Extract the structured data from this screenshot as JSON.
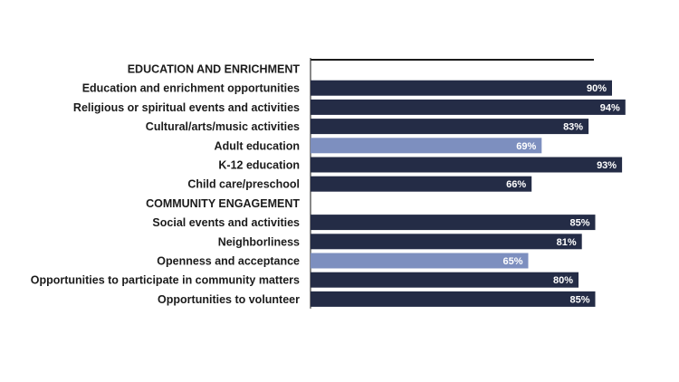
{
  "chart_data": {
    "type": "bar",
    "orientation": "horizontal",
    "title": "",
    "xlabel": "",
    "ylabel": "",
    "xlim": [
      0,
      100
    ],
    "grid": false,
    "legend": "none",
    "colors": {
      "dark": "#242c46",
      "light": "#7d8fbf",
      "axis": "#3a3a3a"
    },
    "groups": [
      {
        "header": "EDUCATION AND ENRICHMENT",
        "items": [
          {
            "label": "Education and enrichment opportunities",
            "value": 90,
            "value_label": "90%",
            "highlight": false
          },
          {
            "label": "Religious or spiritual events and activities",
            "value": 94,
            "value_label": "94%",
            "highlight": false
          },
          {
            "label": "Cultural/arts/music activities",
            "value": 83,
            "value_label": "83%",
            "highlight": false
          },
          {
            "label": "Adult education",
            "value": 69,
            "value_label": "69%",
            "highlight": true
          },
          {
            "label": "K-12 education",
            "value": 93,
            "value_label": "93%",
            "highlight": false
          },
          {
            "label": "Child care/preschool",
            "value": 66,
            "value_label": "66%",
            "highlight": false
          }
        ]
      },
      {
        "header": "COMMUNITY ENGAGEMENT",
        "items": [
          {
            "label": "Social events and activities",
            "value": 85,
            "value_label": "85%",
            "highlight": false
          },
          {
            "label": "Neighborliness",
            "value": 81,
            "value_label": "81%",
            "highlight": false
          },
          {
            "label": "Openness and acceptance",
            "value": 65,
            "value_label": "65%",
            "highlight": true
          },
          {
            "label": "Opportunities to participate in community matters",
            "value": 80,
            "value_label": "80%",
            "highlight": false
          },
          {
            "label": "Opportunities to volunteer",
            "value": 85,
            "value_label": "85%",
            "highlight": false
          }
        ]
      }
    ]
  }
}
